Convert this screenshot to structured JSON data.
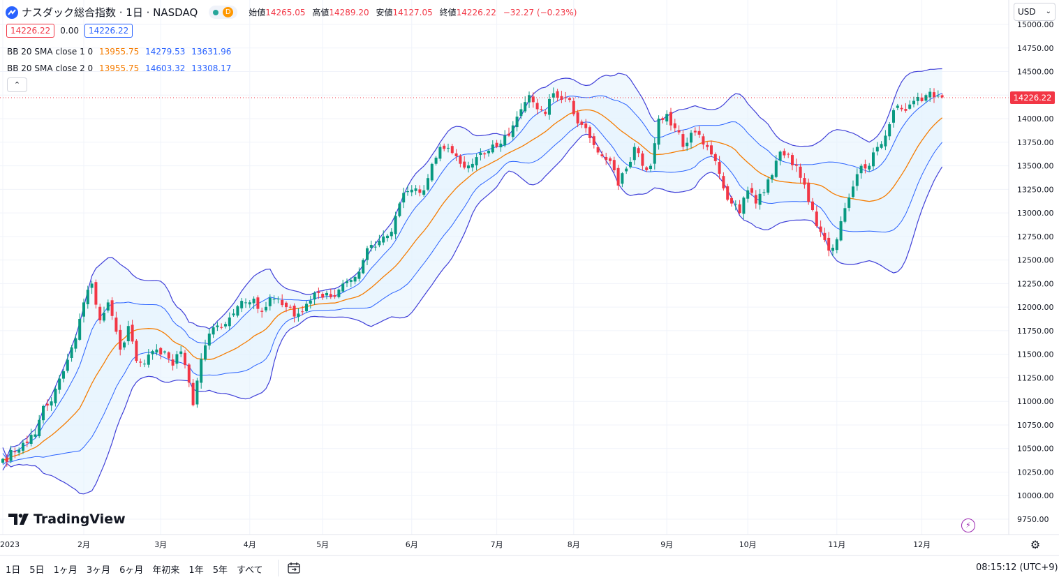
{
  "header": {
    "symbol": "ナスダック総合指数 · 1日 · NASDAQ",
    "status_dot_label": "D",
    "ohlc": {
      "open_label": "始値",
      "open": "14265.05",
      "high_label": "高値",
      "high": "14289.20",
      "low_label": "安値",
      "low": "14127.05",
      "close_label": "終値",
      "close": "14226.22",
      "change": "−32.27 (−0.23%)"
    },
    "currency": "USD",
    "chips": {
      "price1": "14226.22",
      "spread": "0.00",
      "price2": "14226.22"
    }
  },
  "indicators": [
    {
      "name": "BB 20 SMA close 1 0",
      "basis": "13955.75",
      "upper": "14279.53",
      "lower": "13631.96"
    },
    {
      "name": "BB 20 SMA close 2 0",
      "basis": "13955.75",
      "upper": "14603.32",
      "lower": "13308.17"
    }
  ],
  "price_tag": "14226.22",
  "logo": "TradingView",
  "timeframes": [
    "1日",
    "5日",
    "1ヶ月",
    "3ヶ月",
    "6ヶ月",
    "年初来",
    "1年",
    "5年",
    "すべて"
  ],
  "clock": "08:15:12 (UTC+9)",
  "colors": {
    "up": "#089981",
    "down": "#f23645",
    "basis": "#f57c00",
    "band": "#2962ff",
    "fill": "#e3f2fd"
  },
  "chart_data": {
    "type": "candlestick",
    "y_ticks": [
      15000,
      14750,
      14500,
      14250,
      14000,
      13750,
      13500,
      13250,
      13000,
      12750,
      12500,
      12250,
      12000,
      11750,
      11500,
      11250,
      11000,
      10750,
      10500,
      10250,
      10000,
      9750
    ],
    "y_tick_labels": [
      "15000.00",
      "14750.00",
      "14500.00",
      "14250.00",
      "14000.00",
      "13750.00",
      "13500.00",
      "13250.00",
      "13000.00",
      "12750.00",
      "12500.00",
      "12250.00",
      "12000.00",
      "11750.00",
      "11500.00",
      "11250.00",
      "11000.00",
      "10750.00",
      "10500.00",
      "10250.00",
      "10000.00",
      "9750.00"
    ],
    "x_labels": [
      {
        "label": "2023",
        "idx": 0
      },
      {
        "label": "2月",
        "idx": 20
      },
      {
        "label": "3月",
        "idx": 39
      },
      {
        "label": "4月",
        "idx": 61
      },
      {
        "label": "5月",
        "idx": 79
      },
      {
        "label": "6月",
        "idx": 101
      },
      {
        "label": "7月",
        "idx": 122
      },
      {
        "label": "8月",
        "idx": 141
      },
      {
        "label": "9月",
        "idx": 164
      },
      {
        "label": "10月",
        "idx": 184
      },
      {
        "label": "11月",
        "idx": 206
      },
      {
        "label": "12月",
        "idx": 227
      }
    ],
    "close_anchors": [
      [
        0,
        10390
      ],
      [
        3,
        10460
      ],
      [
        5,
        10560
      ],
      [
        8,
        10650
      ],
      [
        10,
        10950
      ],
      [
        12,
        11000
      ],
      [
        15,
        11320
      ],
      [
        18,
        11670
      ],
      [
        20,
        12050
      ],
      [
        22,
        12250
      ],
      [
        24,
        11860
      ],
      [
        26,
        12050
      ],
      [
        29,
        11550
      ],
      [
        31,
        11800
      ],
      [
        33,
        11430
      ],
      [
        35,
        11400
      ],
      [
        38,
        11550
      ],
      [
        40,
        11530
      ],
      [
        42,
        11380
      ],
      [
        44,
        11530
      ],
      [
        46,
        11200
      ],
      [
        47,
        10960
      ],
      [
        49,
        11450
      ],
      [
        51,
        11720
      ],
      [
        54,
        11780
      ],
      [
        56,
        11890
      ],
      [
        58,
        12010
      ],
      [
        60,
        12050
      ],
      [
        62,
        12090
      ],
      [
        64,
        11950
      ],
      [
        66,
        12100
      ],
      [
        68,
        12090
      ],
      [
        70,
        12000
      ],
      [
        72,
        11900
      ],
      [
        74,
        11950
      ],
      [
        76,
        12070
      ],
      [
        78,
        12150
      ],
      [
        80,
        12150
      ],
      [
        82,
        12110
      ],
      [
        84,
        12250
      ],
      [
        87,
        12320
      ],
      [
        89,
        12500
      ],
      [
        91,
        12660
      ],
      [
        94,
        12750
      ],
      [
        96,
        12800
      ],
      [
        98,
        13100
      ],
      [
        100,
        13230
      ],
      [
        102,
        13260
      ],
      [
        104,
        13240
      ],
      [
        106,
        13520
      ],
      [
        108,
        13700
      ],
      [
        110,
        13690
      ],
      [
        112,
        13600
      ],
      [
        114,
        13480
      ],
      [
        116,
        13520
      ],
      [
        118,
        13640
      ],
      [
        120,
        13660
      ],
      [
        122,
        13700
      ],
      [
        125,
        13820
      ],
      [
        128,
        14100
      ],
      [
        130,
        14250
      ],
      [
        132,
        14100
      ],
      [
        134,
        14050
      ],
      [
        136,
        14270
      ],
      [
        138,
        14200
      ],
      [
        140,
        14200
      ],
      [
        142,
        13950
      ],
      [
        144,
        13900
      ],
      [
        146,
        13720
      ],
      [
        148,
        13600
      ],
      [
        150,
        13550
      ],
      [
        152,
        13290
      ],
      [
        154,
        13470
      ],
      [
        156,
        13700
      ],
      [
        158,
        13500
      ],
      [
        160,
        13500
      ],
      [
        162,
        14000
      ],
      [
        164,
        14050
      ],
      [
        166,
        13900
      ],
      [
        168,
        13700
      ],
      [
        170,
        13850
      ],
      [
        172,
        13830
      ],
      [
        174,
        13700
      ],
      [
        176,
        13550
      ],
      [
        178,
        13260
      ],
      [
        180,
        13100
      ],
      [
        182,
        13000
      ],
      [
        184,
        13240
      ],
      [
        186,
        13100
      ],
      [
        188,
        13220
      ],
      [
        190,
        13400
      ],
      [
        192,
        13650
      ],
      [
        194,
        13620
      ],
      [
        196,
        13500
      ],
      [
        198,
        13300
      ],
      [
        200,
        13030
      ],
      [
        202,
        12800
      ],
      [
        204,
        12600
      ],
      [
        206,
        12720
      ],
      [
        208,
        13050
      ],
      [
        210,
        13280
      ],
      [
        212,
        13500
      ],
      [
        214,
        13500
      ],
      [
        216,
        13700
      ],
      [
        218,
        13820
      ],
      [
        220,
        14090
      ],
      [
        222,
        14100
      ],
      [
        224,
        14150
      ],
      [
        226,
        14230
      ],
      [
        228,
        14250
      ],
      [
        230,
        14230
      ],
      [
        232,
        14226.22
      ]
    ],
    "bands": {
      "period": 20,
      "mult_inner": 1,
      "mult_outer": 2
    },
    "last": 14226.22
  }
}
